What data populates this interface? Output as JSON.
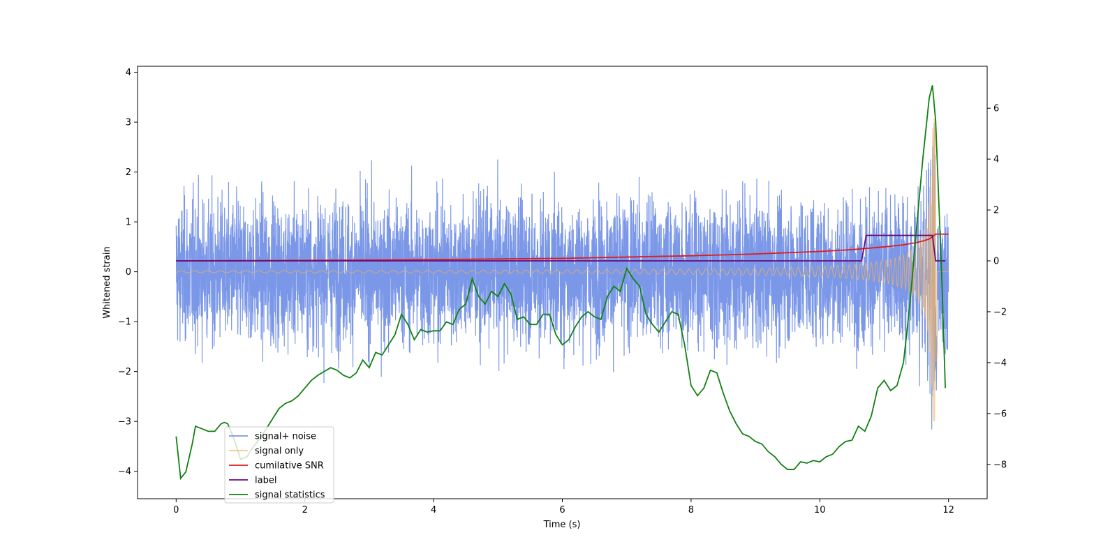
{
  "chart_data": {
    "type": "line",
    "xlabel": "Time (s)",
    "ylabel": "Whitened strain",
    "xlim": [
      -0.6,
      12.6
    ],
    "ylim_left": [
      -4.55,
      4.12
    ],
    "ylim_right": [
      -9.35,
      7.65
    ],
    "x_ticks": [
      0,
      2,
      4,
      6,
      8,
      10,
      12
    ],
    "y_ticks_left": [
      -4,
      -3,
      -2,
      -1,
      0,
      1,
      2,
      3,
      4
    ],
    "y_ticks_right": [
      -8,
      -6,
      -4,
      -2,
      0,
      2,
      4,
      6
    ],
    "legend_position": "lower-left",
    "colors": {
      "signal_noise": "#6d8ce6",
      "signal_only": "#f5b35a",
      "snr": "#e01b1b",
      "label": "#6a0a7a",
      "stats": "#118011"
    },
    "series": [
      {
        "name": "signal+ noise",
        "axis": "left",
        "description_range": [
          -2.6,
          3.0
        ]
      },
      {
        "name": "signal only",
        "axis": "left",
        "chirp_start_amp": 0.02,
        "chirp_end_amp": 3.1,
        "chirp_end_time": 11.8
      },
      {
        "name": "cumilative SNR",
        "axis": "right",
        "x": [
          0,
          2,
          4,
          6,
          8,
          9,
          10,
          10.5,
          11,
          11.3,
          11.5,
          11.6,
          11.7,
          11.75,
          11.8,
          12
        ],
        "values": [
          0.0,
          0.02,
          0.05,
          0.1,
          0.2,
          0.27,
          0.37,
          0.44,
          0.55,
          0.63,
          0.72,
          0.78,
          0.86,
          0.95,
          1.05,
          1.05
        ]
      },
      {
        "name": "label",
        "axis": "right",
        "x": [
          0,
          10.65,
          10.72,
          11.75,
          11.8,
          11.95
        ],
        "values": [
          0,
          0,
          1,
          1,
          0,
          0
        ]
      },
      {
        "name": "signal statistics",
        "axis": "right",
        "x": [
          0,
          0.07,
          0.15,
          0.25,
          0.3,
          0.4,
          0.5,
          0.6,
          0.7,
          0.75,
          0.8,
          0.9,
          1.0,
          1.1,
          1.2,
          1.3,
          1.4,
          1.5,
          1.6,
          1.7,
          1.8,
          1.9,
          2.0,
          2.1,
          2.2,
          2.3,
          2.4,
          2.5,
          2.6,
          2.7,
          2.8,
          2.9,
          3.0,
          3.1,
          3.2,
          3.3,
          3.4,
          3.5,
          3.6,
          3.7,
          3.8,
          3.9,
          4.0,
          4.1,
          4.2,
          4.3,
          4.4,
          4.5,
          4.6,
          4.7,
          4.8,
          4.9,
          5.0,
          5.1,
          5.2,
          5.3,
          5.4,
          5.5,
          5.6,
          5.7,
          5.8,
          5.9,
          6.0,
          6.1,
          6.2,
          6.3,
          6.4,
          6.5,
          6.6,
          6.7,
          6.8,
          6.9,
          7.0,
          7.1,
          7.2,
          7.3,
          7.4,
          7.5,
          7.6,
          7.7,
          7.8,
          7.9,
          8.0,
          8.1,
          8.2,
          8.3,
          8.4,
          8.5,
          8.6,
          8.7,
          8.8,
          8.9,
          9.0,
          9.1,
          9.2,
          9.3,
          9.4,
          9.5,
          9.6,
          9.7,
          9.8,
          9.9,
          10.0,
          10.1,
          10.2,
          10.3,
          10.4,
          10.5,
          10.6,
          10.7,
          10.8,
          10.9,
          11.0,
          11.1,
          11.2,
          11.3,
          11.4,
          11.5,
          11.6,
          11.7,
          11.75,
          11.8,
          11.9,
          11.95
        ],
        "values": [
          -6.9,
          -8.55,
          -8.3,
          -7.2,
          -6.5,
          -6.6,
          -6.7,
          -6.7,
          -6.4,
          -6.35,
          -6.4,
          -7.0,
          -7.8,
          -7.7,
          -7.3,
          -7.0,
          -6.6,
          -6.2,
          -5.8,
          -5.6,
          -5.5,
          -5.3,
          -5.0,
          -4.7,
          -4.5,
          -4.35,
          -4.2,
          -4.3,
          -4.5,
          -4.6,
          -4.4,
          -3.9,
          -4.2,
          -3.6,
          -3.7,
          -3.3,
          -2.9,
          -2.1,
          -2.5,
          -3.1,
          -2.7,
          -2.8,
          -2.75,
          -2.75,
          -2.4,
          -2.5,
          -1.9,
          -1.7,
          -0.7,
          -1.4,
          -1.7,
          -1.2,
          -1.4,
          -0.9,
          -1.3,
          -2.3,
          -2.2,
          -2.5,
          -2.5,
          -2.1,
          -2.1,
          -2.9,
          -3.3,
          -3.1,
          -2.6,
          -2.2,
          -2.0,
          -2.2,
          -2.3,
          -1.4,
          -1.0,
          -1.2,
          -0.3,
          -0.7,
          -1.0,
          -2.1,
          -2.5,
          -2.8,
          -2.4,
          -2.0,
          -2.1,
          -3.3,
          -4.9,
          -5.3,
          -5.0,
          -4.3,
          -4.4,
          -5.2,
          -5.9,
          -6.4,
          -6.8,
          -6.9,
          -7.1,
          -7.2,
          -7.5,
          -7.7,
          -8.0,
          -8.2,
          -8.2,
          -7.9,
          -7.95,
          -7.85,
          -7.9,
          -7.7,
          -7.6,
          -7.3,
          -7.1,
          -7.05,
          -6.5,
          -6.7,
          -6.1,
          -5.0,
          -4.7,
          -5.1,
          -4.9,
          -4.0,
          -1.7,
          1.2,
          4.0,
          6.4,
          6.9,
          5.5,
          -1.0,
          -5.0
        ]
      }
    ]
  }
}
